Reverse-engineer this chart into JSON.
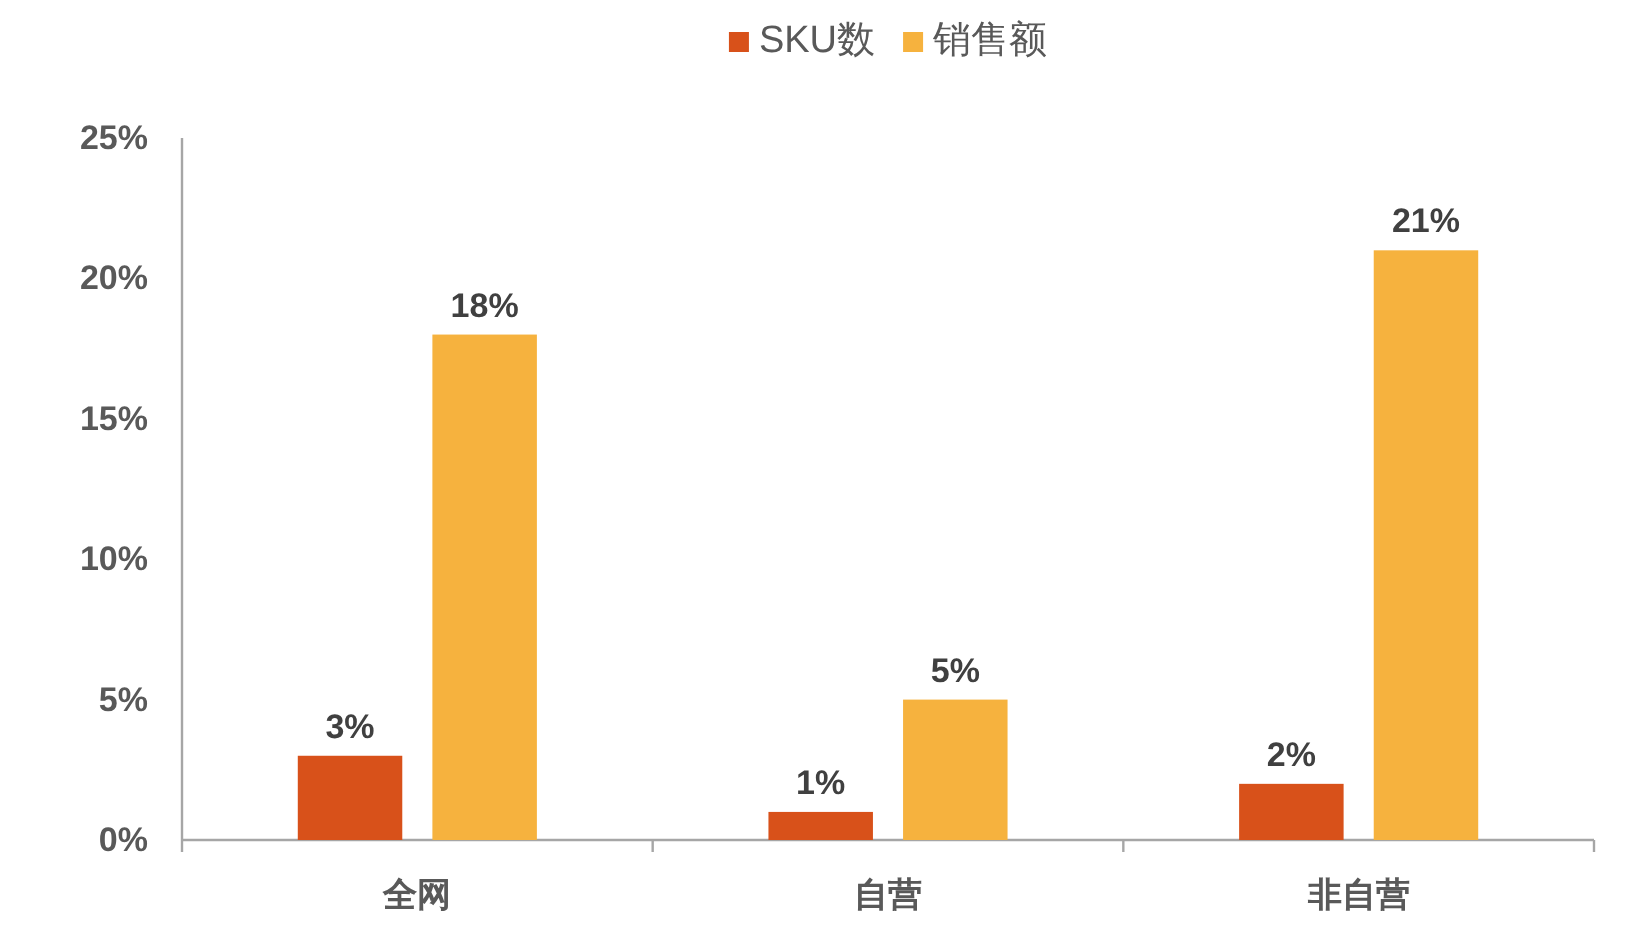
{
  "chart_data": {
    "type": "bar",
    "categories": [
      "全网",
      "自营",
      "非自营"
    ],
    "series": [
      {
        "name": "SKU数",
        "color": "#d8511a",
        "values": [
          3,
          1,
          2
        ],
        "value_labels": [
          "3%",
          "1%",
          "2%"
        ]
      },
      {
        "name": "销售额",
        "color": "#f6b23e",
        "values": [
          18,
          5,
          21
        ],
        "value_labels": [
          "18%",
          "5%",
          "21%"
        ]
      }
    ],
    "ylim": [
      0,
      25
    ],
    "yticks": [
      {
        "value": 0,
        "label": "0%"
      },
      {
        "value": 5,
        "label": "5%"
      },
      {
        "value": 10,
        "label": "10%"
      },
      {
        "value": 15,
        "label": "15%"
      },
      {
        "value": 20,
        "label": "20%"
      },
      {
        "value": 25,
        "label": "25%"
      }
    ],
    "grid": false,
    "legend": "top"
  }
}
